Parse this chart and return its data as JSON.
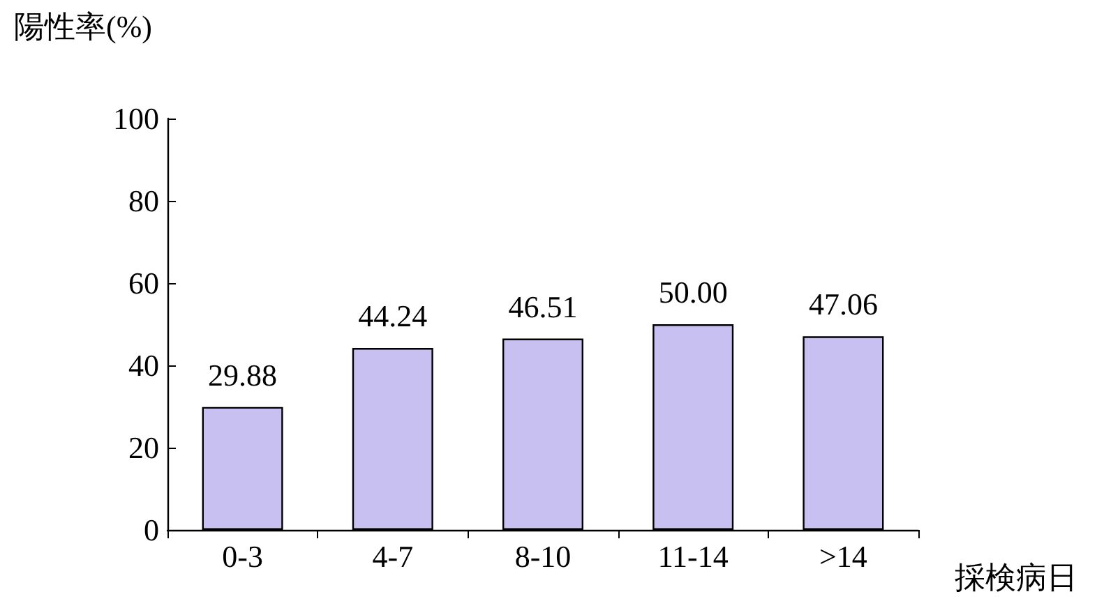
{
  "chart_data": {
    "type": "bar",
    "ylabel": "陽性率(%)",
    "xlabel": "採検病日",
    "categories": [
      "0-3",
      "4-7",
      "8-10",
      "11-14",
      ">14"
    ],
    "values": [
      29.88,
      44.24,
      46.51,
      50.0,
      47.06
    ],
    "value_labels": [
      "29.88",
      "44.24",
      "46.51",
      "50.00",
      "47.06"
    ],
    "color": "#c8c0f0",
    "ylim": [
      0,
      100
    ],
    "yticks": [
      0,
      20,
      40,
      60,
      80,
      100
    ],
    "grid": false
  }
}
